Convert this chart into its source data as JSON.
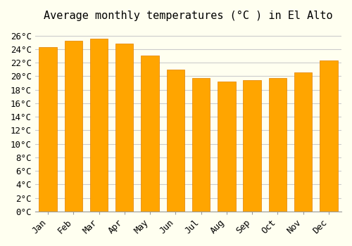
{
  "title": "Average monthly temperatures (°C ) in El Alto",
  "months": [
    "Jan",
    "Feb",
    "Mar",
    "Apr",
    "May",
    "Jun",
    "Jul",
    "Aug",
    "Sep",
    "Oct",
    "Nov",
    "Dec"
  ],
  "temperatures": [
    24.3,
    25.2,
    25.5,
    24.8,
    23.0,
    21.0,
    19.7,
    19.2,
    19.4,
    19.7,
    20.5,
    22.3
  ],
  "bar_color": "#FFA500",
  "bar_edge_color": "#E08000",
  "background_color": "#FFFFF0",
  "grid_color": "#CCCCCC",
  "ylim": [
    0,
    27
  ],
  "ytick_step": 2,
  "title_fontsize": 11,
  "tick_fontsize": 9,
  "font_family": "monospace"
}
